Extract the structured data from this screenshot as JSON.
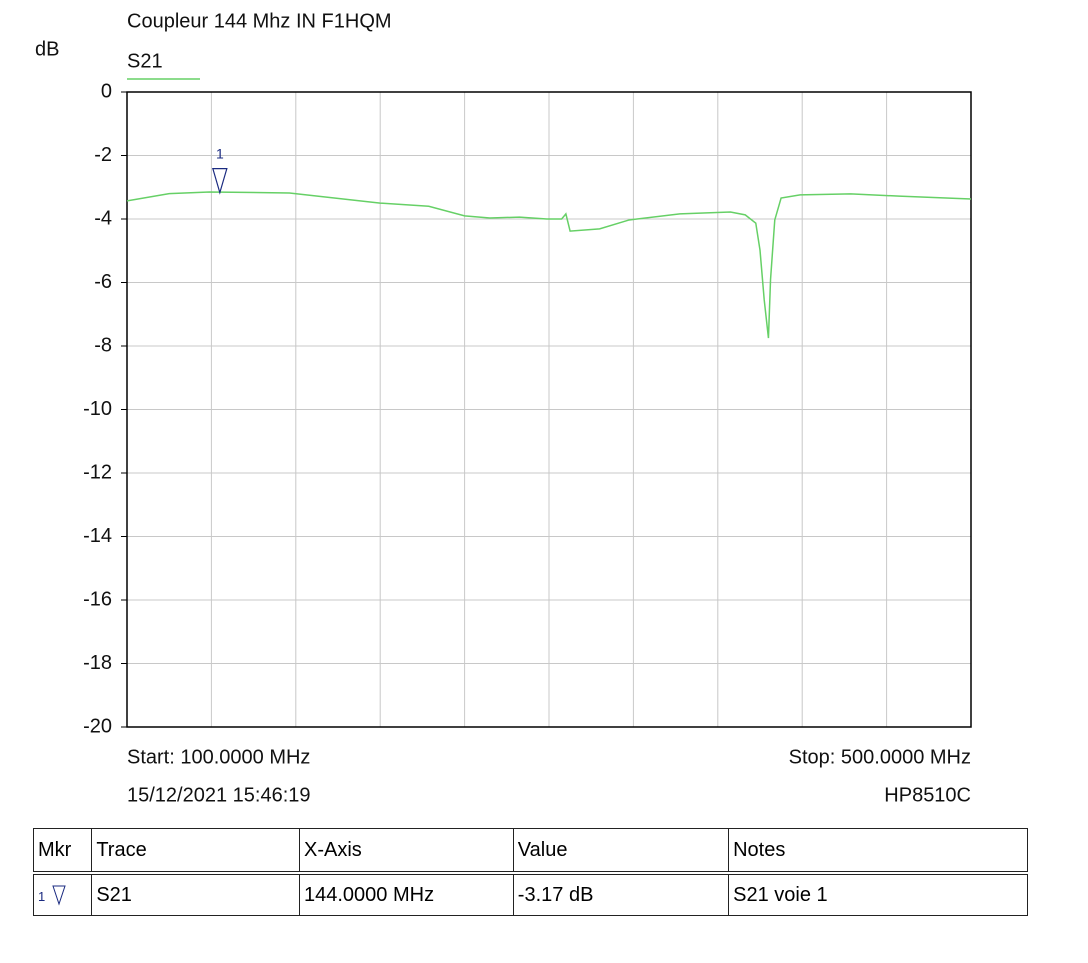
{
  "chart_data": {
    "type": "line",
    "title": "Coupleur 144 Mhz IN F1HQM",
    "y_label": "dB",
    "x": [
      100,
      120,
      139,
      177,
      220,
      243,
      260,
      272,
      286,
      299,
      306,
      308,
      310,
      324,
      338,
      362,
      386,
      393,
      398,
      400,
      402,
      404,
      405,
      407,
      410,
      419,
      443,
      466,
      500
    ],
    "series": [
      {
        "name": "S21",
        "color": "#66d066",
        "values": [
          -3.43,
          -3.2,
          -3.15,
          -3.18,
          -3.5,
          -3.6,
          -3.9,
          -3.97,
          -3.94,
          -4.0,
          -4.0,
          -3.84,
          -4.38,
          -4.31,
          -4.03,
          -3.84,
          -3.78,
          -3.87,
          -4.13,
          -4.98,
          -6.55,
          -7.75,
          -5.9,
          -4.03,
          -3.34,
          -3.24,
          -3.21,
          -3.28,
          -3.37
        ]
      }
    ],
    "markers": [
      {
        "label": "1",
        "x": 144,
        "value": -3.17
      }
    ],
    "xlim": [
      100,
      500
    ],
    "xticks": [
      100,
      140,
      180,
      220,
      260,
      300,
      340,
      380,
      420,
      460,
      500
    ],
    "ylim": [
      -20,
      0
    ],
    "yticks": [
      0,
      -2,
      -4,
      -6,
      -8,
      -10,
      -12,
      -14,
      -16,
      -18,
      -20
    ],
    "grid": true,
    "start_label": "Start: 100.0000 MHz",
    "stop_label": "Stop: 500.0000 MHz",
    "timestamp": "15/12/2021 15:46:19",
    "instrument": "HP8510C"
  },
  "table": {
    "headers": [
      "Mkr",
      "Trace",
      "X-Axis",
      "Value",
      "Notes"
    ],
    "rows": [
      [
        "1",
        "S21",
        "144.0000 MHz",
        "-3.17 dB",
        "S21 voie 1"
      ]
    ]
  }
}
